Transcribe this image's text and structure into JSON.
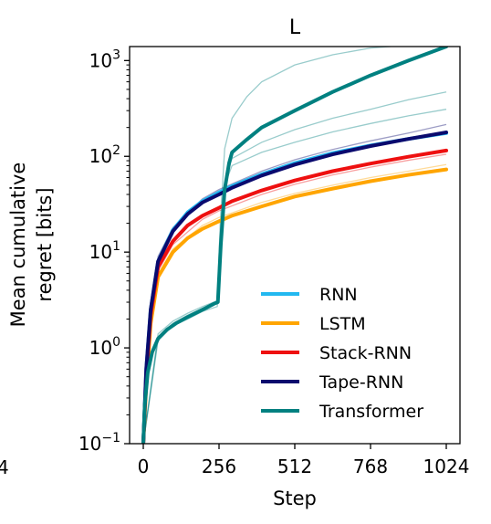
{
  "chart_data": {
    "type": "line",
    "title": "L",
    "xlabel": "Step",
    "ylabel_lines": [
      "Mean cumulative",
      "regret [bits]"
    ],
    "xlim": [
      0,
      1024
    ],
    "ylim": [
      0.1,
      1400
    ],
    "yscale": "log",
    "xticks": [
      0,
      256,
      512,
      768,
      1024
    ],
    "xtick_labels": [
      "0",
      "256",
      "512",
      "768",
      "1024"
    ],
    "yticks": [
      {
        "value": 0.1,
        "base": "10",
        "exp": "−1"
      },
      {
        "value": 1,
        "base": "10",
        "exp": "0"
      },
      {
        "value": 10,
        "base": "10",
        "exp": "1"
      },
      {
        "value": 100,
        "base": "10",
        "exp": "2"
      },
      {
        "value": 1000,
        "base": "10",
        "exp": "3"
      }
    ],
    "left_cut_label": "4",
    "grid": false,
    "legend_position": "lower-right",
    "series": [
      {
        "name": "RNN",
        "color": "#22b8f0",
        "x": [
          0,
          10,
          25,
          50,
          100,
          150,
          200,
          256,
          300,
          400,
          512,
          640,
          768,
          896,
          1024
        ],
        "y": [
          0.1,
          0.6,
          2.5,
          8,
          17,
          26,
          34,
          42,
          49,
          65,
          85,
          108,
          130,
          152,
          175
        ]
      },
      {
        "name": "LSTM",
        "color": "#ffa500",
        "x": [
          0,
          10,
          25,
          50,
          100,
          150,
          200,
          256,
          300,
          400,
          512,
          640,
          768,
          896,
          1024
        ],
        "y": [
          0.1,
          0.4,
          1.8,
          5.5,
          10,
          14,
          17.5,
          21,
          24,
          30,
          38,
          46,
          55,
          64,
          73
        ]
      },
      {
        "name": "Stack-RNN",
        "color": "#ee1010",
        "x": [
          0,
          10,
          25,
          50,
          100,
          150,
          200,
          256,
          300,
          400,
          512,
          640,
          768,
          896,
          1024
        ],
        "y": [
          0.1,
          0.5,
          2.2,
          7,
          13,
          19,
          24,
          29,
          34,
          44,
          56,
          70,
          84,
          99,
          115
        ]
      },
      {
        "name": "Tape-RNN",
        "color": "#0a0a6e",
        "x": [
          0,
          10,
          25,
          50,
          100,
          150,
          200,
          256,
          300,
          400,
          512,
          640,
          768,
          896,
          1024
        ],
        "y": [
          0.1,
          0.6,
          2.5,
          8,
          16.5,
          25,
          33,
          40,
          47,
          63,
          82,
          105,
          128,
          152,
          178
        ]
      },
      {
        "name": "Transformer",
        "color": "#008080",
        "x": [
          0,
          5,
          15,
          30,
          50,
          80,
          110,
          150,
          200,
          240,
          252,
          262,
          275,
          290,
          300,
          350,
          400,
          512,
          640,
          768,
          896,
          1024
        ],
        "y": [
          0.1,
          0.25,
          0.55,
          0.9,
          1.25,
          1.55,
          1.8,
          2.1,
          2.5,
          2.9,
          3,
          12,
          45,
          85,
          110,
          150,
          200,
          300,
          470,
          700,
          1000,
          1400
        ]
      }
    ],
    "faint_runs": [
      {
        "color": "#008080",
        "x": [
          0,
          50,
          100,
          150,
          200,
          250,
          260,
          275,
          300,
          350,
          400,
          512,
          640,
          768,
          896
        ],
        "y": [
          0.1,
          1.3,
          1.8,
          2.2,
          2.6,
          2.9,
          20,
          120,
          250,
          420,
          600,
          900,
          1150,
          1350,
          1450
        ]
      },
      {
        "color": "#008080",
        "x": [
          0,
          50,
          100,
          150,
          200,
          250,
          262,
          280,
          300,
          400,
          512,
          640,
          768,
          896,
          1024
        ],
        "y": [
          0.1,
          1.2,
          1.7,
          2.0,
          2.4,
          2.7,
          10,
          60,
          95,
          140,
          190,
          250,
          310,
          390,
          470
        ]
      },
      {
        "color": "#008080",
        "x": [
          0,
          50,
          100,
          150,
          200,
          250,
          262,
          280,
          300,
          400,
          512,
          640,
          768,
          896,
          1024
        ],
        "y": [
          0.1,
          1.4,
          1.9,
          2.3,
          2.7,
          3.1,
          12,
          55,
          80,
          110,
          140,
          180,
          220,
          265,
          310
        ]
      },
      {
        "color": "#0a0a6e",
        "x": [
          0,
          25,
          50,
          100,
          200,
          256,
          400,
          512,
          640,
          768,
          896,
          1024
        ],
        "y": [
          0.1,
          2.8,
          9,
          18,
          36,
          45,
          70,
          92,
          118,
          145,
          175,
          215
        ]
      },
      {
        "color": "#ee1010",
        "x": [
          0,
          25,
          50,
          100,
          200,
          256,
          400,
          512,
          640,
          768,
          896,
          1024
        ],
        "y": [
          0.1,
          2.0,
          6.3,
          12,
          22,
          27,
          40,
          51,
          64,
          77,
          91,
          105
        ]
      },
      {
        "color": "#ffa500",
        "x": [
          0,
          25,
          50,
          100,
          200,
          256,
          400,
          512,
          640,
          768,
          896,
          1024
        ],
        "y": [
          0.1,
          1.9,
          5.8,
          10.8,
          19,
          23,
          33,
          41,
          50,
          60,
          70,
          82
        ]
      }
    ]
  }
}
